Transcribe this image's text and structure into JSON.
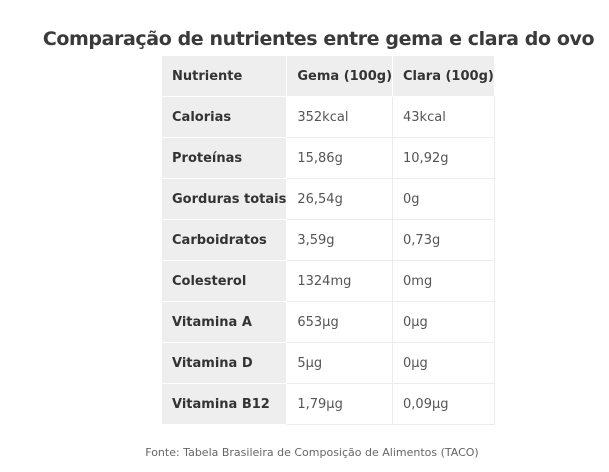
{
  "title": "Comparação de nutrientes entre gema e clara do ovo",
  "table": {
    "headers": [
      "Nutriente",
      "Gema (100g)",
      "Clara (100g)"
    ],
    "rows": [
      [
        "Calorias",
        "352kcal",
        "43kcal"
      ],
      [
        "Proteínas",
        "15,86g",
        "10,92g"
      ],
      [
        "Gorduras totais",
        "26,54g",
        "0g"
      ],
      [
        "Carboidratos",
        "3,59g",
        "0,73g"
      ],
      [
        "Colesterol",
        "1324mg",
        "0mg"
      ],
      [
        "Vitamina A",
        "653µg",
        "0µg"
      ],
      [
        "Vitamina D",
        "5µg",
        "0µg"
      ],
      [
        "Vitamina B12",
        "1,79µg",
        "0,09µg"
      ]
    ]
  },
  "source": "Fonte: Tabela Brasileira de Composição de Alimentos (TACO)",
  "colors": {
    "header_bg": "#eeeeee",
    "label_bg": "#eeeeee",
    "text": "#333333"
  }
}
